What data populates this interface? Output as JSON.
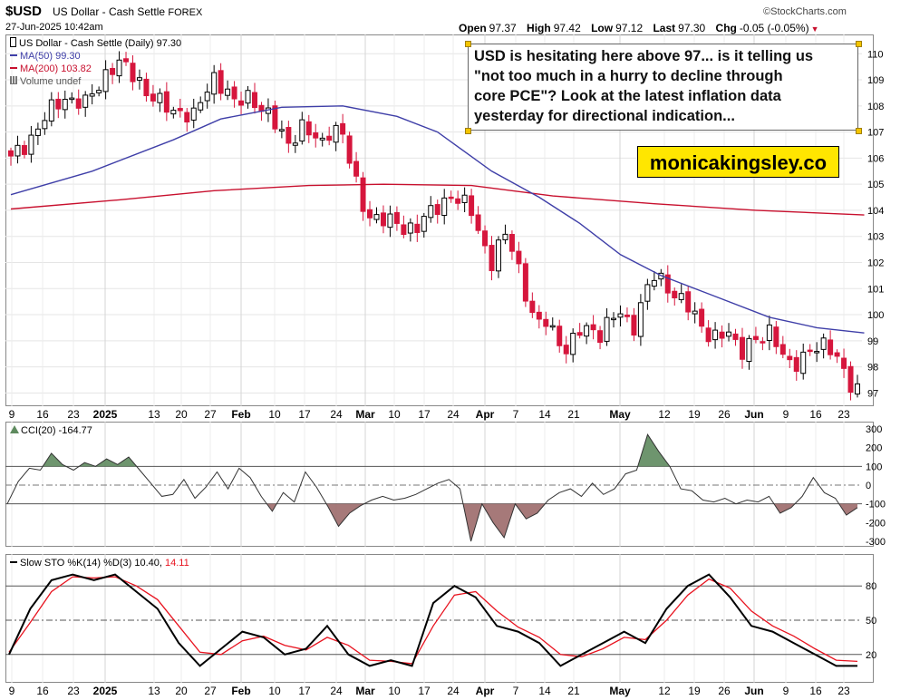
{
  "header": {
    "symbol": "$USD",
    "description": "US Dollar - Cash Settle",
    "exchange": "FOREX",
    "datetime": "27-Jun-2025 10:42am",
    "brand": "©StockCharts.com",
    "open_label": "Open",
    "open": "97.37",
    "high_label": "High",
    "high": "97.42",
    "low_label": "Low",
    "low": "97.12",
    "last_label": "Last",
    "last": "97.30",
    "chg_label": "Chg",
    "chg": "-0.05 (-0.05%)"
  },
  "legend": {
    "main": "US Dollar - Cash Settle (Daily) 97.30",
    "ma50": "MA(50) 99.30",
    "ma200": "MA(200) 103.82",
    "volume": "Volume undef",
    "cci": "CCI(20) -164.77",
    "sto_label": "Slow STO %K(14) %D(3) 10.40,",
    "sto_d_value": "14.11"
  },
  "annotation": {
    "text_lines": [
      "USD is hesitating here above 97... is it telling us",
      "\"not too much in a hurry to decline through",
      "core PCE\"? Look at the latest inflation data",
      "yesterday for directional indication..."
    ],
    "line1": "USD is hesitating here above 97... is it telling us",
    "line2": "\"not too much in a hurry to decline through",
    "line3": "core PCE\"? Look at the latest inflation data",
    "line4": "yesterday for directional indication...",
    "website": "monicakingsley.co"
  },
  "colors": {
    "up": "#ffffff",
    "down": "#d6163d",
    "ma50": "#3f3fa8",
    "ma200": "#c8102e",
    "cci_pos": "#5e8a5e",
    "cci_neg": "#9c6a6a",
    "k_line": "#000000",
    "d_line": "#e8131f"
  },
  "chart_data": [
    {
      "type": "candlestick",
      "title": "US Dollar - Cash Settle (Daily)",
      "ylim": [
        96.7,
        110.6
      ],
      "yticks": [
        97,
        98,
        99,
        100,
        101,
        102,
        103,
        104,
        105,
        106,
        107,
        108,
        109,
        110
      ],
      "x_labels": [
        "9",
        "16",
        "23",
        "2025",
        "13",
        "20",
        "27",
        "Feb",
        "10",
        "17",
        "24",
        "Mar",
        "10",
        "17",
        "24",
        "Apr",
        "7",
        "14",
        "21",
        "May",
        "12",
        "19",
        "26",
        "Jun",
        "9",
        "16",
        "23"
      ],
      "bold_labels": [
        "2025",
        "Feb",
        "Mar",
        "Apr",
        "May",
        "Jun"
      ],
      "close_path": [
        105.9,
        106.4,
        106.9,
        107.4,
        107.9,
        108.4,
        108.2,
        108.0,
        108.7,
        109.4,
        109.6,
        109.3,
        109.0,
        108.4,
        108.0,
        107.8,
        107.9,
        107.5,
        108.3,
        109.2,
        108.7,
        107.9,
        108.4,
        108.2,
        107.6,
        107.0,
        106.6,
        107.3,
        106.8,
        106.5,
        107.4,
        106.8,
        105.2,
        104.1,
        103.7,
        103.5,
        103.5,
        103.4,
        103.3,
        103.8,
        104.3,
        104.6,
        104.2,
        104.0,
        102.9,
        101.8,
        103.1,
        102.5,
        100.9,
        99.4,
        99.8,
        99.2,
        98.5,
        99.3,
        99.6,
        99.3,
        99.7,
        100.1,
        99.5,
        100.6,
        101.4,
        101.3,
        100.8,
        100.3,
        99.8,
        99.4,
        99.1,
        99.2,
        98.6,
        99.1,
        98.9,
        99.3,
        98.7,
        97.9,
        98.2,
        98.9,
        99.0,
        98.3,
        97.4,
        97.3
      ],
      "series": [
        {
          "name": "MA(50)",
          "value": 99.3,
          "path": [
            [
              0,
              104.6
            ],
            [
              12,
              105.5
            ],
            [
              24,
              106.7
            ],
            [
              31,
              107.5
            ],
            [
              40,
              107.95
            ],
            [
              49,
              108.0
            ],
            [
              57,
              107.6
            ],
            [
              63,
              107.0
            ],
            [
              71,
              105.5
            ],
            [
              78,
              104.5
            ],
            [
              84,
              103.5
            ],
            [
              90,
              102.3
            ],
            [
              96,
              101.5
            ],
            [
              103,
              100.8
            ],
            [
              112,
              99.9
            ],
            [
              119,
              99.5
            ],
            [
              126,
              99.3
            ]
          ]
        },
        {
          "name": "MA(200)",
          "value": 103.82,
          "path": [
            [
              0,
              104.05
            ],
            [
              16,
              104.4
            ],
            [
              30,
              104.75
            ],
            [
              44,
              104.95
            ],
            [
              55,
              105.0
            ],
            [
              68,
              104.95
            ],
            [
              80,
              104.55
            ],
            [
              95,
              104.25
            ],
            [
              110,
              104.0
            ],
            [
              126,
              103.82
            ]
          ]
        }
      ]
    },
    {
      "type": "area",
      "title": "CCI(20)",
      "ylim": [
        -300,
        300
      ],
      "yticks": [
        300,
        200,
        100,
        0,
        -100,
        -200,
        -300
      ],
      "values": [
        -100,
        20,
        90,
        80,
        170,
        110,
        80,
        120,
        100,
        140,
        110,
        150,
        80,
        10,
        -60,
        -50,
        30,
        -70,
        -10,
        70,
        -20,
        90,
        40,
        -60,
        -140,
        -40,
        -90,
        70,
        -10,
        -110,
        -220,
        -150,
        -110,
        -80,
        -60,
        -80,
        -70,
        -50,
        -20,
        10,
        30,
        -20,
        -300,
        -100,
        -200,
        -280,
        -100,
        -180,
        -150,
        -80,
        -40,
        -20,
        -60,
        10,
        -50,
        -20,
        60,
        80,
        270,
        180,
        100,
        -20,
        -30,
        -80,
        -90,
        -70,
        -100,
        -80,
        -90,
        -60,
        -150,
        -120,
        -60,
        40,
        -40,
        -70,
        -160,
        -120
      ]
    },
    {
      "type": "line",
      "title": "Slow STO %K(14) %D(3)",
      "ylim": [
        0,
        100
      ],
      "yticks": [
        80,
        50,
        20
      ],
      "series": [
        {
          "name": "%K",
          "value": 10.4,
          "values": [
            20,
            60,
            85,
            90,
            85,
            90,
            75,
            60,
            30,
            10,
            25,
            40,
            35,
            20,
            25,
            45,
            20,
            10,
            15,
            10,
            65,
            80,
            70,
            45,
            40,
            30,
            10,
            20,
            30,
            40,
            30,
            60,
            80,
            90,
            70,
            45,
            40,
            30,
            20,
            10,
            10
          ]
        },
        {
          "name": "%D",
          "value": 14.11,
          "values": [
            22,
            48,
            75,
            88,
            87,
            88,
            80,
            68,
            45,
            22,
            20,
            32,
            36,
            28,
            24,
            35,
            28,
            15,
            14,
            12,
            45,
            72,
            75,
            58,
            44,
            35,
            20,
            18,
            25,
            35,
            33,
            50,
            72,
            86,
            78,
            58,
            45,
            36,
            25,
            15,
            14
          ]
        }
      ]
    }
  ]
}
